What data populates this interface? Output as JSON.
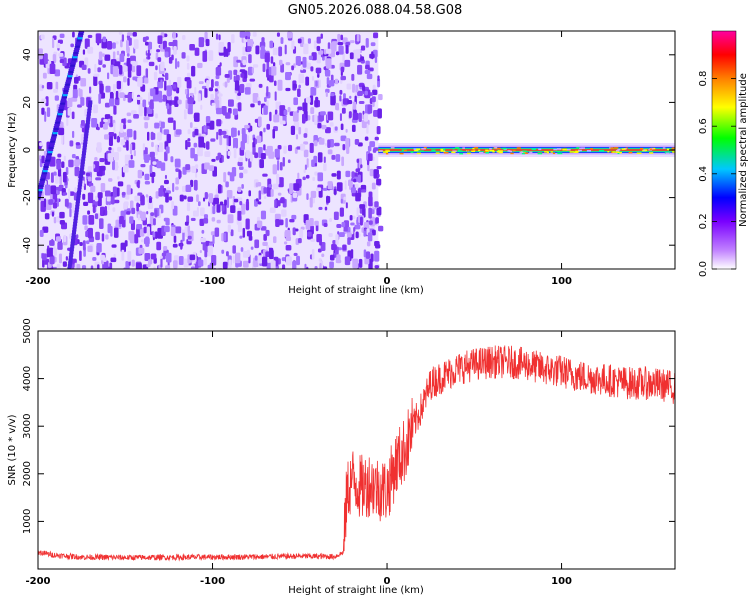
{
  "title": "GN05.2026.088.04.58.G08",
  "colors": {
    "snr_line": "#f03030",
    "spectrum_base": "#7a3cf0",
    "frame": "#000000"
  },
  "colorbar": {
    "label": "Normalized spectral amplitude",
    "ticks": [
      "0.0",
      "0.2",
      "0.4",
      "0.6",
      "0.8"
    ],
    "tick_values": [
      0.0,
      0.2,
      0.4,
      0.6,
      0.8
    ],
    "range": [
      0,
      1
    ],
    "colormap": [
      "#ffffff",
      "#7a00ff",
      "#0000ff",
      "#00c8ff",
      "#00ff00",
      "#ffff00",
      "#ff8000",
      "#ff0000",
      "#ff00a0"
    ]
  },
  "chart_data": [
    {
      "type": "heatmap",
      "title": "GN05.2026.088.04.58.G08",
      "xlabel": "Height of straight line (km)",
      "ylabel": "Frequency (Hz)",
      "xlim": [
        -200,
        165
      ],
      "ylim": [
        -50,
        50
      ],
      "x_ticks": [
        -200,
        -100,
        0,
        100
      ],
      "x_tick_labels": [
        "-200",
        "-100",
        "0",
        "100"
      ],
      "y_ticks": [
        -40,
        -20,
        0,
        20,
        40
      ],
      "y_tick_labels": [
        "-40",
        "-20",
        "0",
        "20",
        "40"
      ],
      "noise_region_x": [
        -200,
        -5
      ],
      "signal_region_x": [
        -5,
        165
      ],
      "signal_frequency": 0,
      "signal_peak_amplitude": 0.9,
      "diagonal_streak": {
        "x": [
          -200,
          -175
        ],
        "y": [
          -20,
          50
        ]
      },
      "grid": false
    },
    {
      "type": "line",
      "xlabel": "Height of straight line (km)",
      "ylabel": "SNR (10 * v/v)",
      "xlim": [
        -200,
        165
      ],
      "ylim": [
        0,
        5000
      ],
      "x_ticks": [
        -200,
        -100,
        0,
        100
      ],
      "x_tick_labels": [
        "-200",
        "-100",
        "0",
        "100"
      ],
      "y_ticks": [
        1000,
        2000,
        3000,
        4000,
        5000
      ],
      "y_tick_labels": [
        "1000",
        "2000",
        "3000",
        "4000",
        "5000"
      ],
      "grid": false,
      "series": [
        {
          "x": [
            -200,
            -190,
            -175,
            -150,
            -125,
            -100,
            -75,
            -50,
            -30,
            -25,
            -23,
            -20,
            -15,
            -10,
            -5,
            0,
            5,
            10,
            15,
            20,
            25,
            30,
            40,
            50,
            60,
            70,
            80,
            90,
            100,
            110,
            120,
            130,
            140,
            150,
            160,
            165
          ],
          "y": [
            350,
            290,
            250,
            240,
            245,
            250,
            255,
            270,
            260,
            350,
            1600,
            1900,
            1700,
            1800,
            1700,
            1650,
            2200,
            2500,
            3000,
            3400,
            3900,
            4000,
            4200,
            4300,
            4350,
            4350,
            4300,
            4200,
            4150,
            4050,
            4000,
            3950,
            3900,
            3900,
            3850,
            3800
          ]
        }
      ]
    }
  ]
}
